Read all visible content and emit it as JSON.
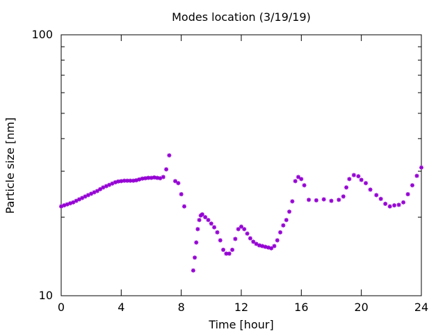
{
  "chart_data": {
    "type": "scatter",
    "title": "Modes location (3/19/19)",
    "xlabel": "Time [hour]",
    "ylabel": "Particle size [nm]",
    "xlim": [
      0,
      24
    ],
    "ylim": [
      10,
      100
    ],
    "yscale": "log",
    "xticks": [
      0,
      4,
      8,
      12,
      16,
      20,
      24
    ],
    "xtick_labels": [
      "0",
      "4",
      "8",
      "12",
      "16",
      "20",
      "24"
    ],
    "yticks": [
      10,
      100
    ],
    "ytick_labels": [
      "10",
      "100"
    ],
    "grid": false,
    "legend": "none",
    "marker_color": "#9400d3",
    "series": [
      {
        "x": [
          0.0,
          0.2,
          0.4,
          0.6,
          0.8,
          1.0,
          1.2,
          1.4,
          1.6,
          1.8,
          2.0,
          2.2,
          2.4,
          2.6,
          2.8,
          3.0,
          3.2,
          3.4,
          3.6,
          3.8,
          4.0,
          4.2,
          4.4,
          4.6,
          4.8,
          5.0,
          5.2,
          5.4,
          5.6,
          5.8,
          6.0,
          6.2,
          6.4,
          6.6,
          6.8,
          7.0,
          7.2,
          7.6,
          7.8,
          8.0,
          8.2,
          8.8,
          8.9,
          9.0,
          9.1,
          9.2,
          9.3,
          9.4,
          9.6,
          9.8,
          10.0,
          10.2,
          10.4,
          10.6,
          10.8,
          11.0,
          11.2,
          11.4,
          11.6,
          11.8,
          12.0,
          12.2,
          12.4,
          12.6,
          12.8,
          13.0,
          13.2,
          13.4,
          13.6,
          13.8,
          14.0,
          14.2,
          14.4,
          14.6,
          14.8,
          15.0,
          15.2,
          15.4,
          15.6,
          15.8,
          16.0,
          16.2,
          16.5,
          17.0,
          17.5,
          18.0,
          18.5,
          18.8,
          19.0,
          19.2,
          19.5,
          19.8,
          20.0,
          20.3,
          20.6,
          21.0,
          21.3,
          21.6,
          21.9,
          22.2,
          22.5,
          22.8,
          23.1,
          23.4,
          23.7,
          24.0
        ],
        "y": [
          22.0,
          22.2,
          22.4,
          22.6,
          22.8,
          23.1,
          23.4,
          23.7,
          24.0,
          24.3,
          24.6,
          24.9,
          25.2,
          25.6,
          26.0,
          26.3,
          26.6,
          26.9,
          27.2,
          27.4,
          27.5,
          27.6,
          27.6,
          27.6,
          27.6,
          27.7,
          27.9,
          28.1,
          28.2,
          28.3,
          28.3,
          28.4,
          28.3,
          28.2,
          28.5,
          30.5,
          34.5,
          27.5,
          27.0,
          24.5,
          22.0,
          12.5,
          14.0,
          16.0,
          18.0,
          19.5,
          20.3,
          20.5,
          20.0,
          19.5,
          18.9,
          18.3,
          17.5,
          16.3,
          15.0,
          14.5,
          14.5,
          15.0,
          16.5,
          18.0,
          18.4,
          18.0,
          17.3,
          16.6,
          16.1,
          15.8,
          15.6,
          15.5,
          15.4,
          15.3,
          15.2,
          15.5,
          16.3,
          17.5,
          18.6,
          19.5,
          21.0,
          23.0,
          27.5,
          28.5,
          28.0,
          26.5,
          23.3,
          23.2,
          23.4,
          23.1,
          23.3,
          24.0,
          26.0,
          28.0,
          29.0,
          28.7,
          27.8,
          27.0,
          25.5,
          24.3,
          23.5,
          22.5,
          22.0,
          22.2,
          22.3,
          22.8,
          24.5,
          26.5,
          28.8,
          31.0
        ]
      }
    ]
  }
}
